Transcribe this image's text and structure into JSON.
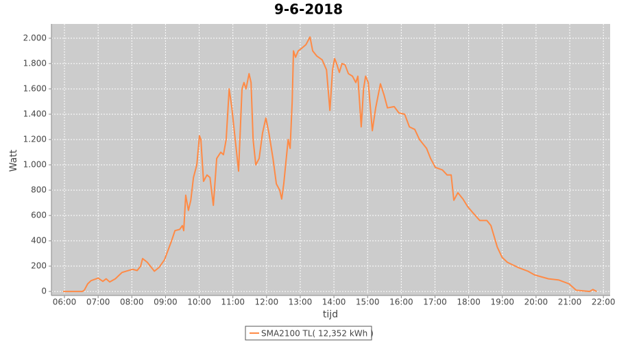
{
  "chart_data": {
    "type": "line",
    "title": "9-6-2018",
    "x_label": "tijd",
    "y_label": "Watt",
    "xlim": [
      5.613,
      22.2
    ],
    "ylim": [
      -32,
      2113
    ],
    "xticks": [
      {
        "value": 6,
        "label": "06:00"
      },
      {
        "value": 7,
        "label": "07:00"
      },
      {
        "value": 8,
        "label": "08:00"
      },
      {
        "value": 9,
        "label": "09:00"
      },
      {
        "value": 10,
        "label": "10:00"
      },
      {
        "value": 11,
        "label": "11:00"
      },
      {
        "value": 12,
        "label": "12:00"
      },
      {
        "value": 13,
        "label": "13:00"
      },
      {
        "value": 14,
        "label": "14:00"
      },
      {
        "value": 15,
        "label": "15:00"
      },
      {
        "value": 16,
        "label": "16:00"
      },
      {
        "value": 17,
        "label": "17:00"
      },
      {
        "value": 18,
        "label": "18:00"
      },
      {
        "value": 19,
        "label": "19:00"
      },
      {
        "value": 20,
        "label": "20:00"
      },
      {
        "value": 21,
        "label": "21:00"
      },
      {
        "value": 22,
        "label": "22:00"
      }
    ],
    "yticks": [
      0,
      {
        "value": 200,
        "label": "200"
      },
      {
        "value": 400,
        "label": "400"
      },
      {
        "value": 600,
        "label": "600"
      },
      {
        "value": 800,
        "label": "800"
      },
      {
        "value": 1000,
        "label": "1.000"
      },
      {
        "value": 1200,
        "label": "1.200"
      },
      {
        "value": 1400,
        "label": "1.400"
      },
      {
        "value": 1600,
        "label": "1.600"
      },
      {
        "value": 1800,
        "label": "1.800"
      },
      {
        "value": 2000,
        "label": "2.000"
      }
    ],
    "grid": true,
    "series": [
      {
        "name": "SMA2100 TL( 12,352 kWh )",
        "color": "#ff8a45",
        "x": [
          5.96,
          6.53,
          6.59,
          6.69,
          6.79,
          7.0,
          7.14,
          7.24,
          7.34,
          7.51,
          7.71,
          8.02,
          8.16,
          8.26,
          8.32,
          8.46,
          8.67,
          8.81,
          8.97,
          9.18,
          9.28,
          9.42,
          9.5,
          9.54,
          9.6,
          9.68,
          9.75,
          9.83,
          9.93,
          10.01,
          10.05,
          10.13,
          10.23,
          10.32,
          10.42,
          10.52,
          10.64,
          10.72,
          10.8,
          10.89,
          10.97,
          11.05,
          11.11,
          11.17,
          11.27,
          11.33,
          11.39,
          11.48,
          11.54,
          11.6,
          11.68,
          11.78,
          11.88,
          11.98,
          12.07,
          12.19,
          12.29,
          12.39,
          12.45,
          12.51,
          12.64,
          12.7,
          12.76,
          12.8,
          12.86,
          12.94,
          13.04,
          13.17,
          13.29,
          13.37,
          13.49,
          13.65,
          13.78,
          13.88,
          13.96,
          14.02,
          14.08,
          14.16,
          14.24,
          14.33,
          14.43,
          14.55,
          14.65,
          14.71,
          14.81,
          14.88,
          14.94,
          15.02,
          15.14,
          15.24,
          15.38,
          15.49,
          15.59,
          15.79,
          15.93,
          16.1,
          16.24,
          16.4,
          16.54,
          16.75,
          16.87,
          17.01,
          17.22,
          17.36,
          17.48,
          17.56,
          17.68,
          17.83,
          17.97,
          18.13,
          18.33,
          18.54,
          18.66,
          18.85,
          18.99,
          19.15,
          19.46,
          19.76,
          19.96,
          20.37,
          20.68,
          20.98,
          21.19,
          21.59,
          21.69,
          21.8
        ],
        "values": [
          0,
          0,
          10,
          60,
          85,
          105,
          80,
          100,
          75,
          100,
          150,
          175,
          165,
          200,
          260,
          230,
          160,
          190,
          250,
          400,
          480,
          490,
          520,
          480,
          760,
          640,
          720,
          900,
          1000,
          1230,
          1200,
          870,
          920,
          900,
          680,
          1050,
          1100,
          1080,
          1200,
          1600,
          1450,
          1250,
          1100,
          950,
          1600,
          1650,
          1600,
          1720,
          1650,
          1200,
          1000,
          1050,
          1250,
          1370,
          1250,
          1050,
          850,
          800,
          730,
          850,
          1200,
          1130,
          1500,
          1900,
          1850,
          1900,
          1920,
          1950,
          2010,
          1900,
          1860,
          1830,
          1750,
          1430,
          1750,
          1840,
          1800,
          1730,
          1800,
          1790,
          1720,
          1700,
          1650,
          1700,
          1300,
          1600,
          1700,
          1650,
          1270,
          1450,
          1640,
          1550,
          1450,
          1460,
          1410,
          1400,
          1300,
          1280,
          1200,
          1130,
          1050,
          980,
          960,
          920,
          920,
          720,
          780,
          730,
          670,
          620,
          560,
          560,
          520,
          350,
          270,
          230,
          190,
          160,
          130,
          100,
          90,
          60,
          10,
          0,
          15,
          0
        ]
      }
    ]
  }
}
